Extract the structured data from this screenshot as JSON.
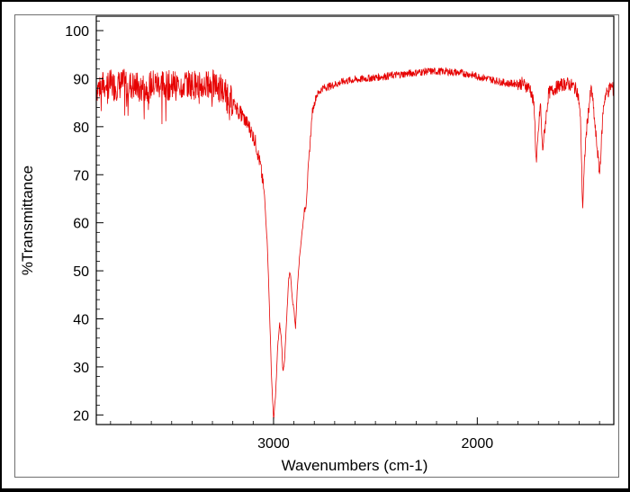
{
  "chart_data": {
    "type": "line",
    "title": "",
    "xlabel": "Wavenumbers (cm-1)",
    "ylabel": "%Transmittance",
    "x_reversed": true,
    "xlim": [
      3870,
      1330
    ],
    "ylim": [
      18,
      103
    ],
    "x_ticks": [
      3000,
      2000
    ],
    "y_ticks": [
      20,
      30,
      40,
      50,
      60,
      70,
      80,
      90,
      100
    ],
    "grid": false,
    "series": [
      {
        "color": "#e60000",
        "x": [
          3870,
          3820,
          3780,
          3720,
          3650,
          3580,
          3500,
          3420,
          3350,
          3300,
          3260,
          3230,
          3200,
          3180,
          3150,
          3120,
          3090,
          3065,
          3045,
          3030,
          3020,
          3010,
          3000,
          2990,
          2980,
          2970,
          2962,
          2958,
          2955,
          2950,
          2945,
          2938,
          2932,
          2926,
          2920,
          2914,
          2908,
          2900,
          2892,
          2885,
          2878,
          2870,
          2865,
          2860,
          2855,
          2850,
          2845,
          2840,
          2830,
          2820,
          2810,
          2790,
          2760,
          2720,
          2650,
          2550,
          2450,
          2350,
          2250,
          2150,
          2050,
          1950,
          1850,
          1780,
          1740,
          1720,
          1715,
          1710,
          1700,
          1690,
          1685,
          1680,
          1650,
          1600,
          1560,
          1530,
          1510,
          1500,
          1492,
          1487,
          1483,
          1478,
          1470,
          1460,
          1450,
          1440,
          1430,
          1420,
          1410,
          1400,
          1393,
          1388,
          1383,
          1378,
          1372,
          1365,
          1355,
          1345,
          1335,
          1330
        ],
        "y": [
          88,
          89,
          88.5,
          89,
          88,
          89,
          88.5,
          89,
          88.5,
          88.7,
          88,
          86.5,
          85,
          84,
          82,
          80,
          77,
          72,
          66,
          55,
          42,
          28,
          19,
          24,
          34,
          39,
          36,
          33,
          29,
          30,
          32,
          38,
          43,
          48,
          50,
          48,
          44,
          42,
          38,
          45,
          50,
          54,
          56,
          58,
          60,
          62,
          63,
          64,
          71,
          77,
          83,
          86.5,
          88,
          88.5,
          89.5,
          90,
          90.5,
          91,
          91.5,
          91.5,
          91,
          90,
          89,
          89,
          88,
          84,
          77,
          72,
          79,
          85,
          80,
          75,
          87,
          88.5,
          89,
          88.5,
          87.5,
          85,
          80,
          70,
          63,
          68,
          76,
          81,
          85,
          88,
          84,
          79,
          75,
          70,
          75,
          79,
          83,
          85,
          86.5,
          87,
          87.5,
          88.5,
          88,
          87
        ]
      }
    ]
  }
}
